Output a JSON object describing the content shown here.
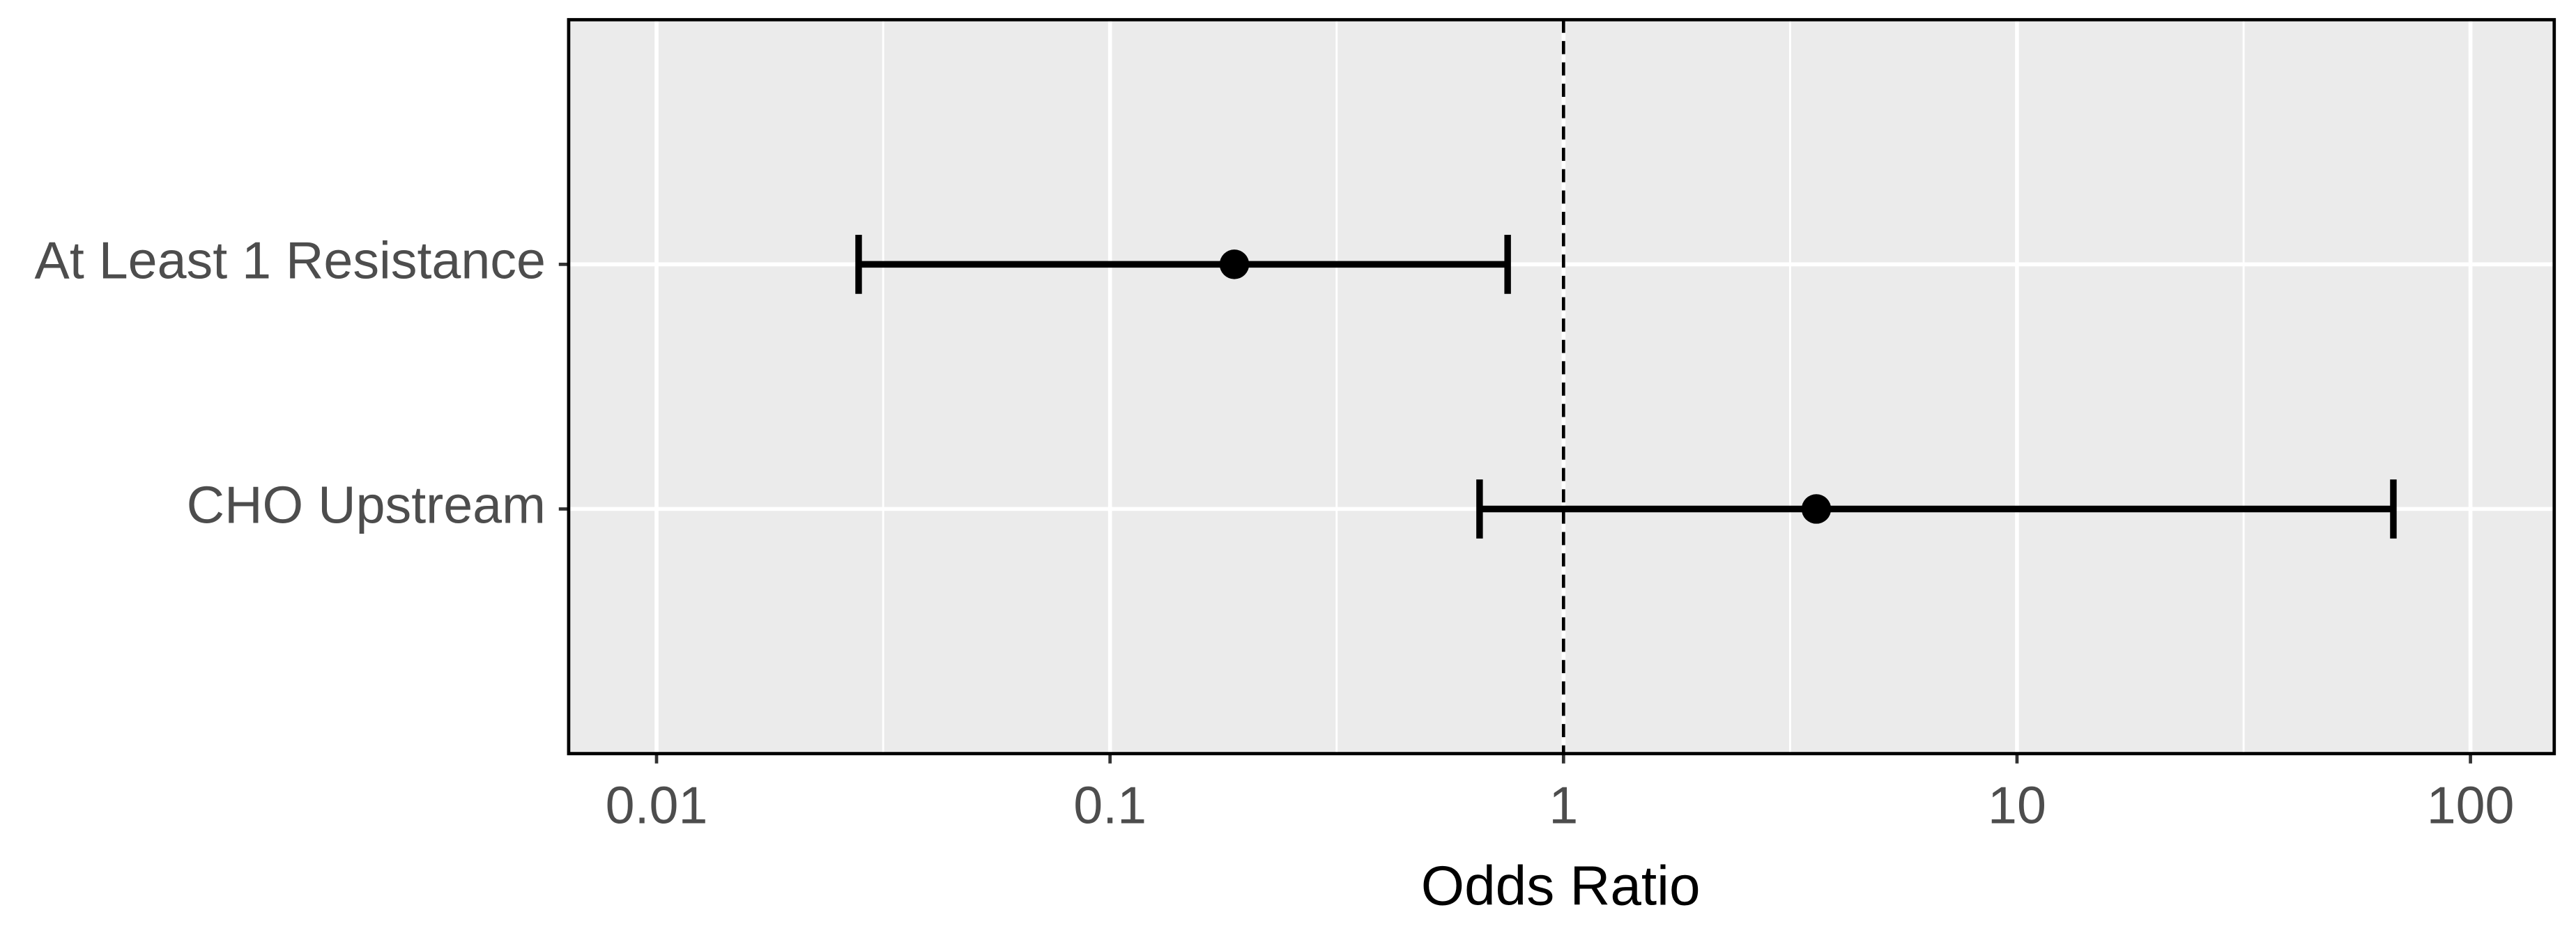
{
  "chart_data": {
    "type": "forest",
    "x_label": "Odds Ratio",
    "categories": [
      "At Least 1 Resistance",
      "CHO Upstream"
    ],
    "estimates": [
      0.188,
      3.61
    ],
    "lower": [
      0.0279,
      0.653
    ],
    "upper": [
      0.753,
      67.6
    ],
    "x_log_scale": true,
    "xlim": [
      0.0064,
      153
    ],
    "xticks": [
      0.01,
      0.1,
      1,
      10,
      100
    ],
    "x_minor_ticks": [
      0.0316,
      0.316,
      3.16,
      31.6
    ],
    "reference_line": 1,
    "grid": true,
    "color": "#000000",
    "panel_color": "#ebebeb"
  }
}
